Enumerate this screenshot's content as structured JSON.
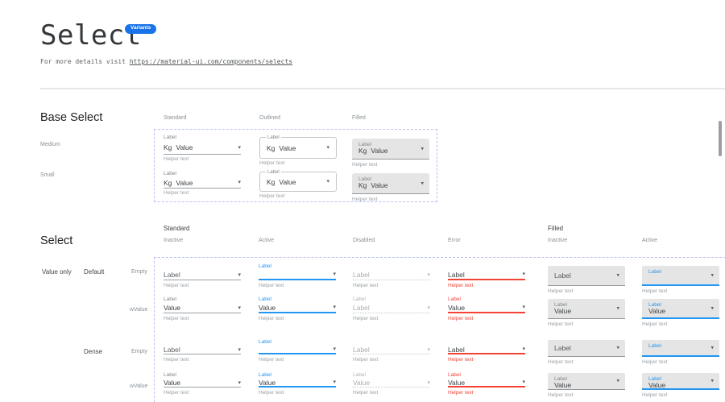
{
  "colors": {
    "accent": "#2196f3",
    "error": "#f44336",
    "badge_bg": "#1a73e8",
    "filled_bg": "#e5e5e5",
    "dashed_border": "#b9bff2"
  },
  "header": {
    "title": "Select",
    "badge": "Variants",
    "subtitle_prefix": "For more details visit ",
    "subtitle_link": "https://material-ui.com/components/selects"
  },
  "base_select": {
    "heading": "Base Select",
    "column_headers": [
      "Standard",
      "Outlined",
      "Filled"
    ],
    "row_labels": [
      "Medium",
      "Small"
    ],
    "cells": [
      {
        "variant": "standard",
        "size": "medium",
        "label": "Label",
        "prefix": "Kg",
        "value": "Value",
        "helper": "Helper text"
      },
      {
        "variant": "outlined",
        "size": "medium",
        "label": "Label",
        "prefix": "Kg",
        "value": "Value",
        "helper": "Helper text"
      },
      {
        "variant": "filled",
        "size": "medium",
        "label": "Label",
        "prefix": "Kg",
        "value": "Value",
        "helper": "Helper text"
      },
      {
        "variant": "standard",
        "size": "small",
        "label": "Label",
        "prefix": "Kg",
        "value": "Value",
        "helper": "Helper text"
      },
      {
        "variant": "outlined",
        "size": "small",
        "label": "Label",
        "prefix": "Kg",
        "value": "Value",
        "helper": "Helper text"
      },
      {
        "variant": "filled",
        "size": "small",
        "label": "Label",
        "prefix": "Kg",
        "value": "Value",
        "helper": "Helper text"
      }
    ]
  },
  "select": {
    "heading": "Select",
    "group_headers": [
      "Standard",
      "Filled"
    ],
    "column_headers": [
      "Inactive",
      "Active",
      "Disabled",
      "Error",
      "Inactive",
      "Active"
    ],
    "row_group_label": "Value only",
    "row_variant_labels": [
      "Default",
      "Dense"
    ],
    "row_state_labels": [
      "Empty",
      "wValue"
    ],
    "cells": [
      {
        "variant": "standard",
        "state": "inactive",
        "dense": false,
        "placeholder": "Label",
        "helper": "Helper text"
      },
      {
        "variant": "standard",
        "state": "active",
        "dense": false,
        "label": "Label",
        "helper": "Helper text"
      },
      {
        "variant": "standard",
        "state": "disabled",
        "dense": false,
        "placeholder": "Label",
        "helper": "Helper text"
      },
      {
        "variant": "standard",
        "state": "error",
        "dense": false,
        "placeholder": "Label",
        "helper": "Helper text"
      },
      {
        "variant": "filled",
        "state": "inactive",
        "dense": false,
        "placeholder": "Label",
        "helper": "Helper text"
      },
      {
        "variant": "filled",
        "state": "active",
        "dense": false,
        "label": "Label",
        "helper": "Helper text"
      },
      {
        "variant": "standard",
        "state": "inactive",
        "dense": false,
        "label": "Label",
        "value": "Value",
        "helper": "Helper text"
      },
      {
        "variant": "standard",
        "state": "active",
        "dense": false,
        "label": "Label",
        "value": "Value",
        "helper": "Helper text"
      },
      {
        "variant": "standard",
        "state": "disabled",
        "dense": false,
        "label": "Label",
        "value": "Label",
        "helper": "Helper text"
      },
      {
        "variant": "standard",
        "state": "error",
        "dense": false,
        "label": "Label",
        "value": "Value",
        "helper": "Helper text"
      },
      {
        "variant": "filled",
        "state": "inactive",
        "dense": false,
        "label": "Label",
        "value": "Value",
        "helper": "Helper text"
      },
      {
        "variant": "filled",
        "state": "active",
        "dense": false,
        "label": "Label",
        "value": "Value",
        "helper": "Helper text"
      },
      {
        "variant": "standard",
        "state": "inactive",
        "dense": true,
        "placeholder": "Label",
        "helper": "Helper text"
      },
      {
        "variant": "standard",
        "state": "active",
        "dense": true,
        "label": "Label",
        "helper": "Helper text"
      },
      {
        "variant": "standard",
        "state": "disabled",
        "dense": true,
        "placeholder": "Label",
        "helper": "Helper text"
      },
      {
        "variant": "standard",
        "state": "error",
        "dense": true,
        "placeholder": "Label",
        "helper": "Helper text"
      },
      {
        "variant": "filled",
        "state": "inactive",
        "dense": true,
        "placeholder": "Label",
        "helper": "Helper text"
      },
      {
        "variant": "filled",
        "state": "active",
        "dense": true,
        "label": "Label",
        "helper": "Helper text"
      },
      {
        "variant": "standard",
        "state": "inactive",
        "dense": true,
        "label": "Label",
        "value": "Value",
        "helper": "Helper text"
      },
      {
        "variant": "standard",
        "state": "active",
        "dense": true,
        "label": "Label",
        "value": "Value",
        "helper": "Helper text"
      },
      {
        "variant": "standard",
        "state": "disabled",
        "dense": true,
        "label": "Label",
        "value": "Value",
        "helper": "Helper text"
      },
      {
        "variant": "standard",
        "state": "error",
        "dense": true,
        "label": "Label",
        "value": "Value",
        "helper": "Helper text"
      },
      {
        "variant": "filled",
        "state": "inactive",
        "dense": true,
        "label": "Label",
        "value": "Value",
        "helper": "Helper text"
      },
      {
        "variant": "filled",
        "state": "active",
        "dense": true,
        "label": "Label",
        "value": "Value",
        "helper": "Helper text"
      }
    ],
    "caret_icon": "▾"
  }
}
